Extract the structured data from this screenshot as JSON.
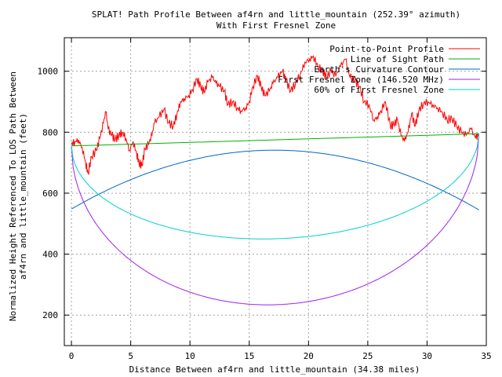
{
  "chart_data": {
    "type": "line",
    "title": "SPLAT! Path Profile Between af4rn and little_mountain (252.39° azimuth)",
    "subtitle": "With First Fresnel Zone",
    "xlabel": "Distance Between af4rn and little_mountain (34.38 miles)",
    "ylabel_line1": "Normalized Height Referenced To LOS Path Between",
    "ylabel_line2": "af4rn and little_mountain (feet)",
    "xlim": [
      -0.6,
      35
    ],
    "ylim": [
      100,
      1110
    ],
    "x_ticks": [
      0,
      5,
      10,
      15,
      20,
      25,
      30,
      35
    ],
    "y_ticks": [
      200,
      400,
      600,
      800,
      1000
    ],
    "grid": true,
    "legend_position": "top-right",
    "series": [
      {
        "name": "Point-to-Point Profile",
        "color": "#ff0000",
        "kind": "terrain",
        "anchors": [
          [
            0,
            760
          ],
          [
            0.3,
            770
          ],
          [
            0.6,
            775
          ],
          [
            0.9,
            750
          ],
          [
            1.2,
            700
          ],
          [
            1.4,
            665
          ],
          [
            1.7,
            720
          ],
          [
            2.1,
            740
          ],
          [
            2.4,
            780
          ],
          [
            2.7,
            830
          ],
          [
            2.9,
            868
          ],
          [
            3.1,
            810
          ],
          [
            3.4,
            790
          ],
          [
            3.7,
            775
          ],
          [
            4.0,
            790
          ],
          [
            4.3,
            800
          ],
          [
            4.6,
            780
          ],
          [
            4.9,
            740
          ],
          [
            5.2,
            770
          ],
          [
            5.5,
            730
          ],
          [
            5.7,
            700
          ],
          [
            5.95,
            690
          ],
          [
            6.2,
            745
          ],
          [
            6.5,
            760
          ],
          [
            6.8,
            790
          ],
          [
            7.0,
            830
          ],
          [
            7.4,
            850
          ],
          [
            7.8,
            875
          ],
          [
            8.2,
            830
          ],
          [
            8.6,
            820
          ],
          [
            8.9,
            860
          ],
          [
            9.2,
            900
          ],
          [
            9.5,
            910
          ],
          [
            9.9,
            920
          ],
          [
            10.2,
            940
          ],
          [
            10.6,
            975
          ],
          [
            10.9,
            950
          ],
          [
            11.2,
            930
          ],
          [
            11.5,
            965
          ],
          [
            11.9,
            980
          ],
          [
            12.2,
            960
          ],
          [
            12.5,
            950
          ],
          [
            12.9,
            935
          ],
          [
            13.2,
            890
          ],
          [
            13.6,
            900
          ],
          [
            14.0,
            880
          ],
          [
            14.3,
            870
          ],
          [
            14.7,
            880
          ],
          [
            15.0,
            900
          ],
          [
            15.3,
            950
          ],
          [
            15.7,
            985
          ],
          [
            16.0,
            950
          ],
          [
            16.3,
            920
          ],
          [
            16.7,
            935
          ],
          [
            17.0,
            960
          ],
          [
            17.4,
            980
          ],
          [
            17.8,
            1000
          ],
          [
            18.1,
            970
          ],
          [
            18.5,
            935
          ],
          [
            18.9,
            960
          ],
          [
            19.3,
            990
          ],
          [
            19.7,
            1030
          ],
          [
            20.1,
            1040
          ],
          [
            20.4,
            1050
          ],
          [
            20.8,
            1015
          ],
          [
            21.2,
            1000
          ],
          [
            21.5,
            980
          ],
          [
            21.9,
            1000
          ],
          [
            22.3,
            985
          ],
          [
            22.7,
            1015
          ],
          [
            23.1,
            1040
          ],
          [
            23.5,
            980
          ],
          [
            23.9,
            970
          ],
          [
            24.3,
            950
          ],
          [
            24.7,
            900
          ],
          [
            25.1,
            890
          ],
          [
            25.5,
            840
          ],
          [
            25.8,
            850
          ],
          [
            26.1,
            870
          ],
          [
            26.5,
            900
          ],
          [
            26.9,
            820
          ],
          [
            27.2,
            825
          ],
          [
            27.5,
            840
          ],
          [
            27.8,
            790
          ],
          [
            28.1,
            770
          ],
          [
            28.4,
            800
          ],
          [
            28.7,
            860
          ],
          [
            29.0,
            820
          ],
          [
            29.3,
            870
          ],
          [
            29.7,
            895
          ],
          [
            30.1,
            900
          ],
          [
            30.5,
            890
          ],
          [
            30.9,
            880
          ],
          [
            31.3,
            865
          ],
          [
            31.7,
            840
          ],
          [
            32.1,
            845
          ],
          [
            32.5,
            820
          ],
          [
            32.9,
            800
          ],
          [
            33.3,
            790
          ],
          [
            33.7,
            810
          ],
          [
            34.1,
            780
          ],
          [
            34.38,
            795
          ]
        ]
      },
      {
        "name": "Line of Sight Path",
        "color": "#00b000",
        "kind": "line",
        "endpoints": [
          [
            0,
            755
          ],
          [
            34.38,
            795
          ]
        ]
      },
      {
        "name": "Earth's Curvature Contour",
        "color": "#0066cc",
        "kind": "arc",
        "endpoints": [
          [
            0,
            548
          ],
          [
            34.38,
            545
          ]
        ],
        "peak": [
          17.19,
          741
        ]
      },
      {
        "name": "First Fresnel Zone (146.520 MHz)",
        "color": "#a020f0",
        "kind": "fresnel",
        "radius_mid_ft": 541,
        "fraction": 1.0
      },
      {
        "name": "60% of First Fresnel Zone",
        "color": "#00d0d0",
        "kind": "fresnel",
        "radius_mid_ft": 541,
        "fraction": 0.6
      }
    ]
  }
}
